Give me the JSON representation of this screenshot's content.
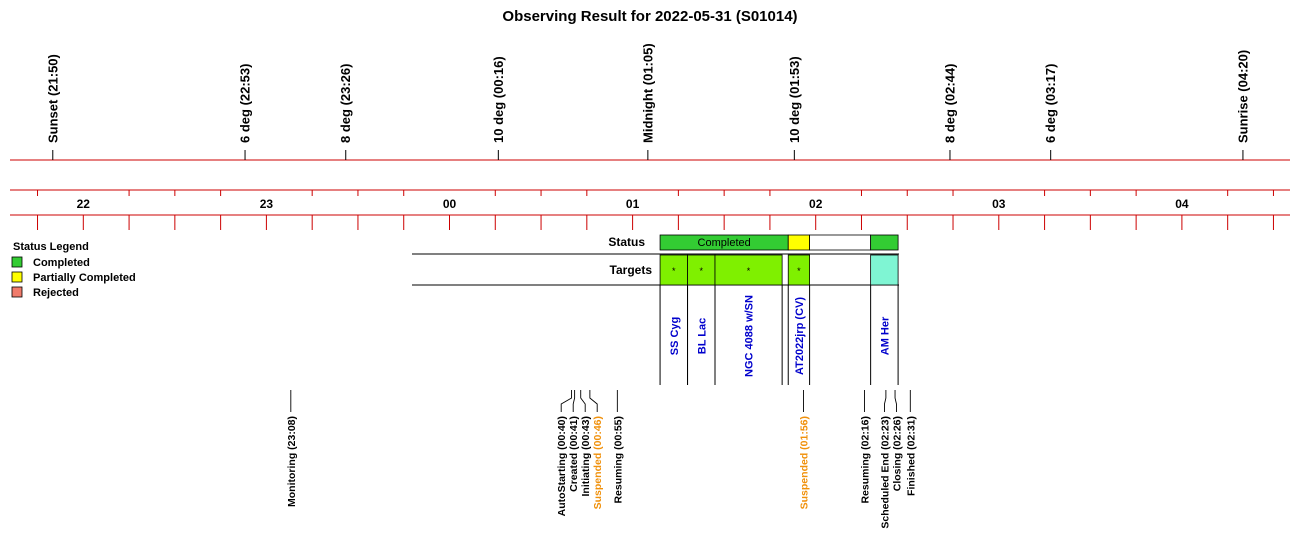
{
  "title": "Observing Result for 2022-05-31 (S01014)",
  "sun_events": [
    {
      "label": "Sunset (21:50)",
      "time": "21:50"
    },
    {
      "label": "6 deg (22:53)",
      "time": "22:53"
    },
    {
      "label": "8 deg (23:26)",
      "time": "23:26"
    },
    {
      "label": "10 deg (00:16)",
      "time": "00:16"
    },
    {
      "label": "Midnight (01:05)",
      "time": "01:05"
    },
    {
      "label": "10 deg (01:53)",
      "time": "01:53"
    },
    {
      "label": "8 deg (02:44)",
      "time": "02:44"
    },
    {
      "label": "6 deg (03:17)",
      "time": "03:17"
    },
    {
      "label": "Sunrise (04:20)",
      "time": "04:20"
    }
  ],
  "hour_labels": [
    "22",
    "23",
    "00",
    "01",
    "02",
    "03",
    "04"
  ],
  "legend": {
    "title": "Status Legend",
    "items": [
      {
        "label": "Completed",
        "color": "#33cc33"
      },
      {
        "label": "Partially Completed",
        "color": "#ffff00"
      },
      {
        "label": "Rejected",
        "color": "#f07b6b"
      }
    ]
  },
  "status_row": {
    "label": "Status",
    "segments": [
      {
        "start": "01:09",
        "end": "01:51",
        "status": "Completed",
        "text": "Completed",
        "color": "#33cc33"
      },
      {
        "start": "01:51",
        "end": "01:58",
        "status": "Partially Completed",
        "text": "",
        "color": "#ffff00"
      },
      {
        "start": "01:58",
        "end": "02:18",
        "status": "none",
        "text": "",
        "color": "#ffffff"
      },
      {
        "start": "02:18",
        "end": "02:27",
        "status": "Completed",
        "text": "",
        "color": "#33cc33"
      }
    ]
  },
  "targets_row": {
    "label": "Targets",
    "targets": [
      {
        "name": "SS Cyg",
        "start": "01:09",
        "end": "01:18",
        "mark": "*",
        "color": "#7ff000"
      },
      {
        "name": "BL Lac",
        "start": "01:18",
        "end": "01:27",
        "mark": "*",
        "color": "#7ff000"
      },
      {
        "name": "NGC 4088 w/SN",
        "start": "01:27",
        "end": "01:49",
        "mark": "*",
        "color": "#7ff000"
      },
      {
        "name": "AT2022jrp (CV)",
        "start": "01:51",
        "end": "01:58",
        "mark": "*",
        "color": "#7ff000"
      },
      {
        "name": "AM Her",
        "start": "02:18",
        "end": "02:27",
        "mark": "",
        "color": "#7ff5d3"
      }
    ]
  },
  "events": [
    {
      "label": "Monitoring (23:08)",
      "time": "23:08",
      "color": "#000000"
    },
    {
      "label": "AutoStarting (00:40)",
      "time": "00:40",
      "color": "#000000"
    },
    {
      "label": "Created (00:41)",
      "time": "00:41",
      "color": "#000000"
    },
    {
      "label": "Initiating (00:43)",
      "time": "00:43",
      "color": "#000000"
    },
    {
      "label": "Suspended (00:46)",
      "time": "00:46",
      "color": "#f0900a"
    },
    {
      "label": "Resuming (00:55)",
      "time": "00:55",
      "color": "#000000"
    },
    {
      "label": "Suspended (01:56)",
      "time": "01:56",
      "color": "#f0900a"
    },
    {
      "label": "Resuming (02:16)",
      "time": "02:16",
      "color": "#000000"
    },
    {
      "label": "Scheduled End (02:23)",
      "time": "02:23",
      "color": "#000000"
    },
    {
      "label": "Closing (02:26)",
      "time": "02:26",
      "color": "#000000"
    },
    {
      "label": "Finished (02:31)",
      "time": "02:31",
      "color": "#000000"
    }
  ],
  "colors": {
    "axis": "#cc0000",
    "target_text": "#0000cc"
  }
}
